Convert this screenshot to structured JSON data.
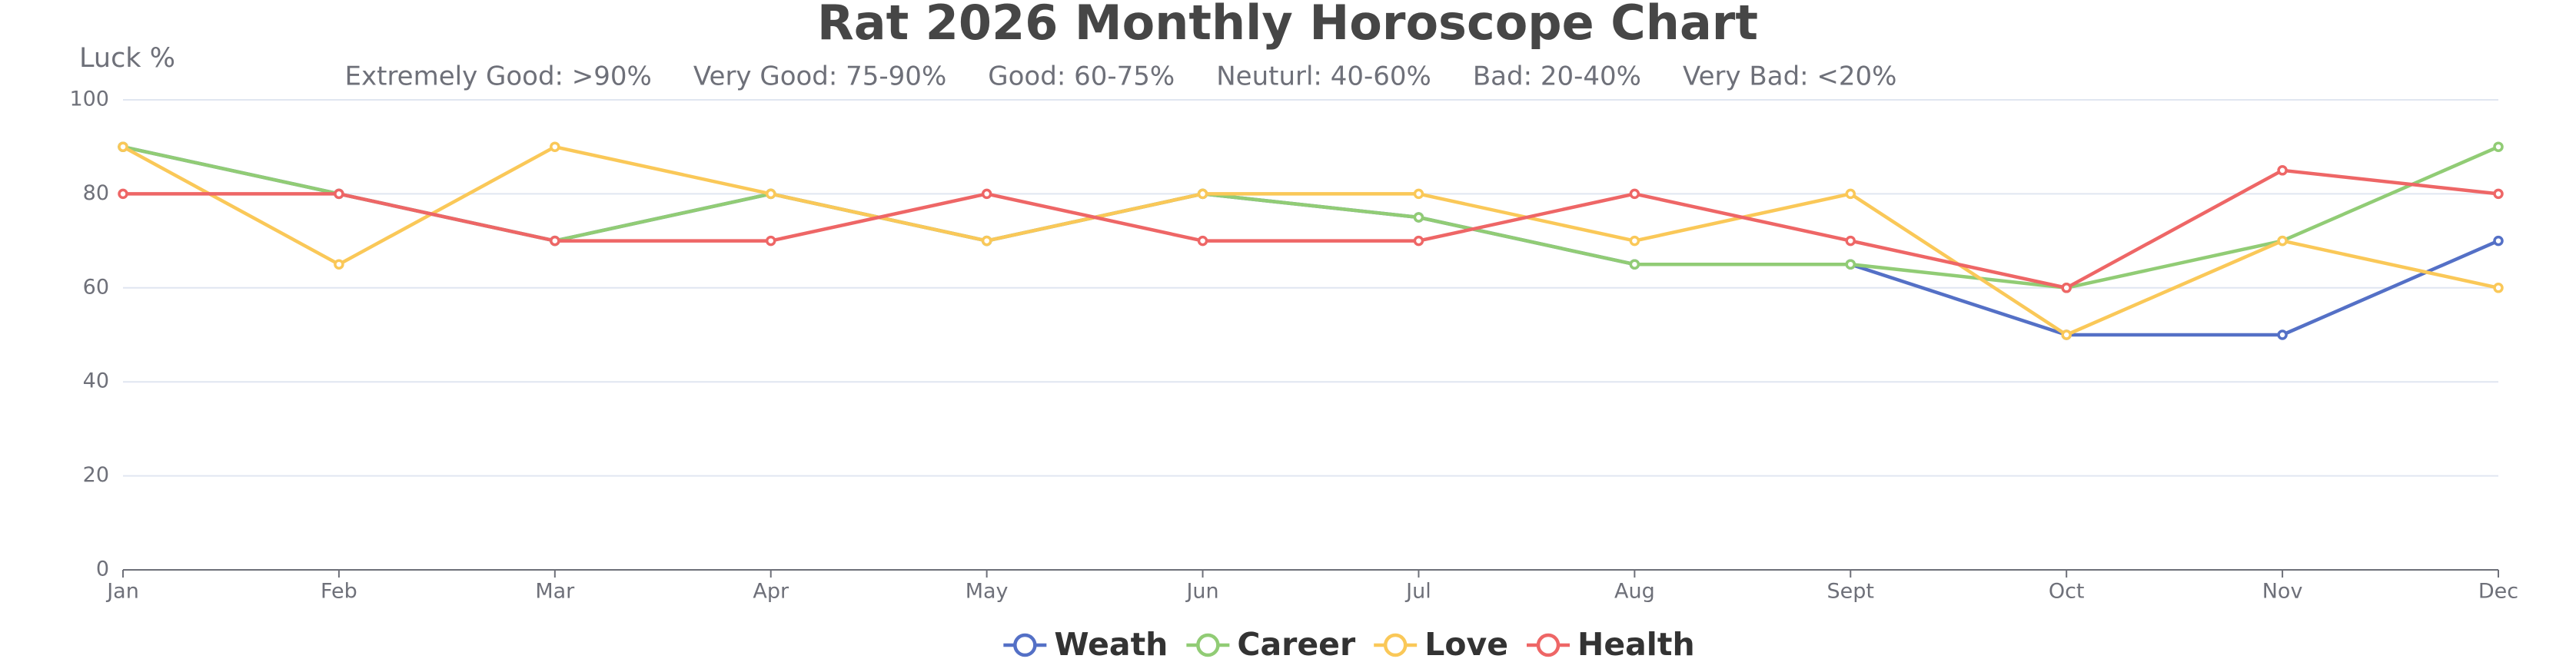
{
  "chart_data": {
    "type": "line",
    "title": "Rat 2026 Monthly Horoscope Chart",
    "subtitle": "Extremely Good: >90%     Very Good: 75-90%     Good: 60-75%     Neuturl: 40-60%     Bad: 20-40%     Very Bad: <20%",
    "y_label": "Luck %",
    "categories": [
      "Jan",
      "Feb",
      "Mar",
      "Apr",
      "May",
      "Jun",
      "Jul",
      "Aug",
      "Sept",
      "Oct",
      "Nov",
      "Dec"
    ],
    "series": [
      {
        "name": "Weath",
        "color": "#5470c6",
        "values": [
          90,
          80,
          70,
          80,
          70,
          80,
          75,
          65,
          65,
          50,
          50,
          70
        ]
      },
      {
        "name": "Career",
        "color": "#91cc75",
        "values": [
          90,
          80,
          70,
          80,
          70,
          80,
          75,
          65,
          65,
          60,
          70,
          90
        ]
      },
      {
        "name": "Love",
        "color": "#fac858",
        "values": [
          90,
          65,
          90,
          80,
          70,
          80,
          80,
          70,
          80,
          50,
          70,
          60
        ]
      },
      {
        "name": "Health",
        "color": "#ee6666",
        "values": [
          80,
          80,
          70,
          70,
          80,
          70,
          70,
          80,
          70,
          60,
          85,
          80
        ]
      }
    ],
    "ylim": [
      0,
      100
    ],
    "yticks": [
      0,
      20,
      40,
      60,
      80,
      100
    ],
    "grid": true,
    "legend": "bottom"
  }
}
